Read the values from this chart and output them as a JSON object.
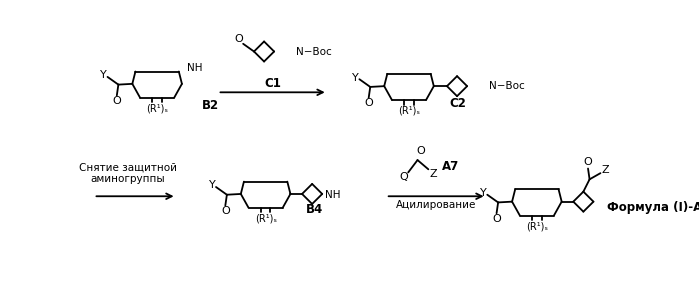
{
  "background_color": "#ffffff",
  "figsize": [
    6.99,
    2.88
  ],
  "dpi": 100,
  "labels": {
    "B2": "B2",
    "C1": "C1",
    "C2": "C2",
    "B4": "B4",
    "A7": "A7",
    "formula": "Формула (I)-A",
    "acylation": "Ацилирование",
    "deprotect": "Снятие защитной\nаминогруппы",
    "NBoc": "N−Boc",
    "NH": "NH",
    "Y": "Y",
    "O": "O",
    "N": "N",
    "Q": "Q",
    "Z": "Z"
  }
}
